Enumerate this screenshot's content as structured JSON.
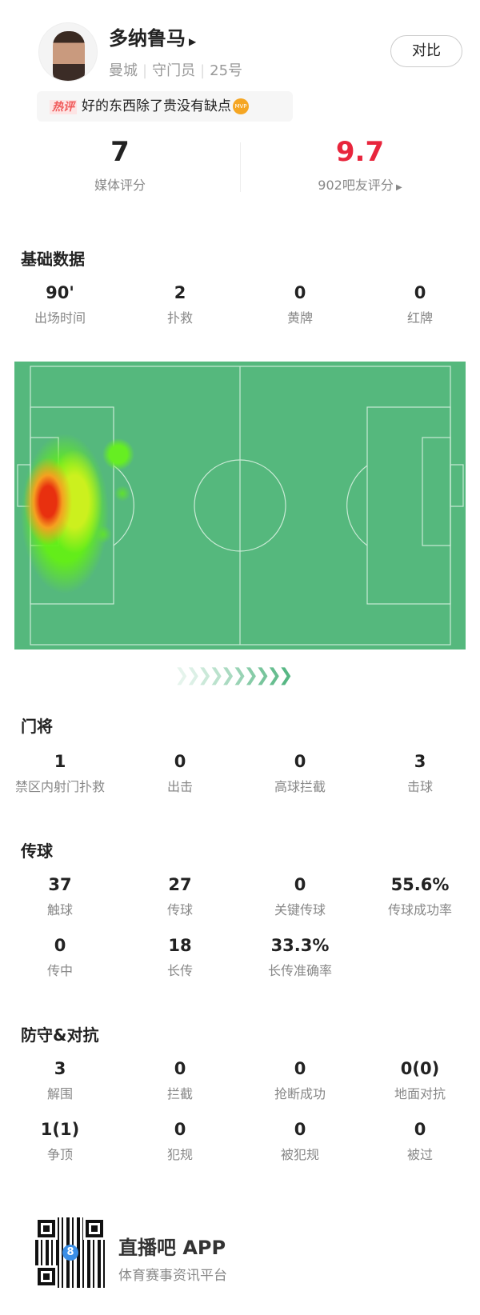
{
  "player": {
    "name": "多纳鲁马",
    "team": "曼城",
    "position": "守门员",
    "number": "25号",
    "compare_label": "对比"
  },
  "hot_comment": {
    "tag": "热评",
    "text": "好的东西除了贵没有缺点",
    "badge": "MVP"
  },
  "ratings": {
    "media": {
      "value": "7",
      "label": "媒体评分"
    },
    "fans": {
      "value": "9.7",
      "label": "902吧友评分",
      "color": "#e8253c"
    }
  },
  "basic": {
    "title": "基础数据",
    "items": [
      {
        "value": "90'",
        "label": "出场时间"
      },
      {
        "value": "2",
        "label": "扑救"
      },
      {
        "value": "0",
        "label": "黄牌"
      },
      {
        "value": "0",
        "label": "红牌"
      }
    ]
  },
  "heatmap": {
    "pitch_color": "#55b87d"
  },
  "goalkeeper": {
    "title": "门将",
    "items": [
      {
        "value": "1",
        "label": "禁区内射门扑救"
      },
      {
        "value": "0",
        "label": "出击"
      },
      {
        "value": "0",
        "label": "高球拦截"
      },
      {
        "value": "3",
        "label": "击球"
      }
    ]
  },
  "passing": {
    "title": "传球",
    "row1": [
      {
        "value": "37",
        "label": "触球"
      },
      {
        "value": "27",
        "label": "传球"
      },
      {
        "value": "0",
        "label": "关键传球"
      },
      {
        "value": "55.6%",
        "label": "传球成功率"
      }
    ],
    "row2": [
      {
        "value": "0",
        "label": "传中"
      },
      {
        "value": "18",
        "label": "长传"
      },
      {
        "value": "33.3%",
        "label": "长传准确率"
      }
    ]
  },
  "defense": {
    "title": "防守&对抗",
    "row1": [
      {
        "value": "3",
        "label": "解围"
      },
      {
        "value": "0",
        "label": "拦截"
      },
      {
        "value": "0",
        "label": "抢断成功"
      },
      {
        "value": "0(0)",
        "label": "地面对抗"
      }
    ],
    "row2": [
      {
        "value": "1(1)",
        "label": "争顶"
      },
      {
        "value": "0",
        "label": "犯规"
      },
      {
        "value": "0",
        "label": "被犯规"
      },
      {
        "value": "0",
        "label": "被过"
      }
    ]
  },
  "footer": {
    "app_name": "直播吧 APP",
    "tagline": "体育赛事资讯平台"
  }
}
